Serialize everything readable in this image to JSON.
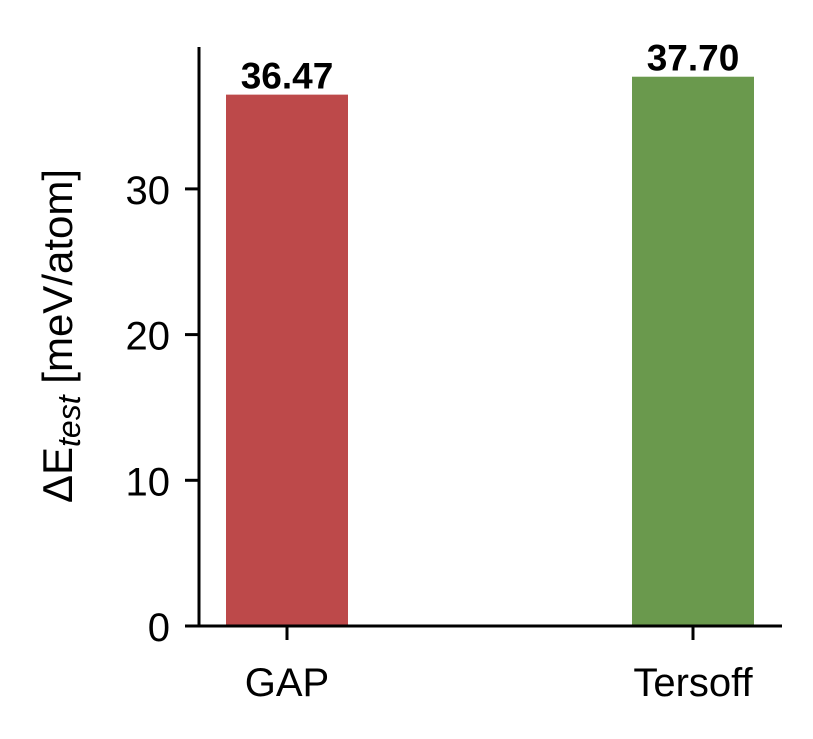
{
  "chart_data": {
    "type": "bar",
    "title": "",
    "categories": [
      "GAP",
      "Tersoff"
    ],
    "values": [
      36.47,
      37.7
    ],
    "value_labels": [
      "36.47",
      "37.70"
    ],
    "colors": [
      "#bd494a",
      "#6a994d"
    ],
    "xlabel": "",
    "ylabel": "ΔE_test [meV/atom]",
    "ylabel_parts": {
      "main": "ΔE",
      "subscript": "test",
      "unit": " [meV/atom]"
    },
    "yticks": [
      0,
      10,
      20,
      30
    ],
    "ytick_labels": [
      "0",
      "10",
      "20",
      "30"
    ],
    "ylim": [
      0,
      39.7
    ],
    "grid": false,
    "legend": null
  }
}
